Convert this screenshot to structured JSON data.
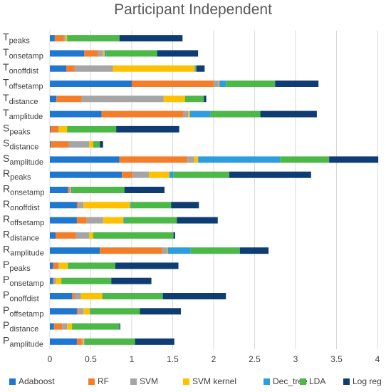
{
  "chart_data": {
    "type": "bar",
    "orientation": "horizontal",
    "stacked": true,
    "title": "Participant Independent",
    "xlim": [
      0,
      4
    ],
    "xticks": [
      "0",
      "0.5",
      "1",
      "1.5",
      "2",
      "2.5",
      "3",
      "3.5",
      "4"
    ],
    "grid": true,
    "legend_position": "bottom",
    "categories": [
      {
        "main": "T",
        "sub": "peaks"
      },
      {
        "main": "T",
        "sub": "onsetamp"
      },
      {
        "main": "T",
        "sub": "onoffdist"
      },
      {
        "main": "T",
        "sub": "offsetamp"
      },
      {
        "main": "T",
        "sub": "distance"
      },
      {
        "main": "T",
        "sub": "amplitude"
      },
      {
        "main": "S",
        "sub": "peaks"
      },
      {
        "main": "S",
        "sub": "distance"
      },
      {
        "main": "S",
        "sub": "amplitude"
      },
      {
        "main": "R",
        "sub": "peaks"
      },
      {
        "main": "R",
        "sub": "onsetamp"
      },
      {
        "main": "R",
        "sub": "onoffdist"
      },
      {
        "main": "R",
        "sub": "offsetamp"
      },
      {
        "main": "R",
        "sub": "distance"
      },
      {
        "main": "R",
        "sub": "amplitude"
      },
      {
        "main": "P",
        "sub": "peaks"
      },
      {
        "main": "P",
        "sub": "onsetamp"
      },
      {
        "main": "P",
        "sub": "onoffdist"
      },
      {
        "main": "P",
        "sub": "offsetamp"
      },
      {
        "main": "P",
        "sub": "distance"
      },
      {
        "main": "P",
        "sub": "amplitude"
      }
    ],
    "series": [
      {
        "name": "Adaboost",
        "color": "#1F77D0",
        "values": [
          0.06,
          0.42,
          0.2,
          1.0,
          0.08,
          0.63,
          0.01,
          0.01,
          0.85,
          0.88,
          0.22,
          0.33,
          0.33,
          0.07,
          0.61,
          0.04,
          0.04,
          0.27,
          0.33,
          0.05,
          0.33
        ]
      },
      {
        "name": "RF",
        "color": "#F47D2A",
        "values": [
          0.11,
          0.17,
          0.1,
          1.0,
          0.31,
          1.0,
          0.09,
          0.22,
          0.83,
          0.13,
          0.02,
          0.02,
          0.12,
          0.25,
          0.76,
          0.06,
          0.01,
          0.03,
          0.02,
          0.1,
          0.06
        ]
      },
      {
        "name": "SVM",
        "color": "#A5A5A5",
        "values": [
          0.02,
          0.06,
          0.47,
          0.06,
          1.0,
          0.06,
          0.01,
          0.25,
          0.08,
          0.2,
          0.01,
          0.06,
          0.2,
          0.16,
          0.06,
          0.01,
          0.02,
          0.08,
          0.06,
          0.06,
          0.01
        ]
      },
      {
        "name": "SVM kernel",
        "color": "#FFC000",
        "values": [
          0.02,
          0.02,
          1.0,
          0.01,
          0.26,
          0.02,
          0.1,
          0.05,
          0.05,
          0.25,
          0.01,
          0.57,
          0.25,
          0.05,
          0.01,
          0.11,
          0.07,
          0.26,
          0.08,
          0.06,
          0.02
        ]
      },
      {
        "name": "Dec_tree",
        "color": "#2E9DE0",
        "values": [
          0.0,
          0.02,
          0.01,
          0.08,
          0.0,
          0.25,
          0.0,
          0.0,
          1.0,
          0.05,
          0.01,
          0.01,
          0.02,
          0.0,
          0.28,
          0.0,
          0.0,
          0.0,
          0.01,
          0.0,
          0.01
        ]
      },
      {
        "name": "LDA",
        "color": "#4CB848",
        "values": [
          0.64,
          0.62,
          0.01,
          0.6,
          0.23,
          0.61,
          0.6,
          0.08,
          0.6,
          0.68,
          0.64,
          0.49,
          0.63,
          0.98,
          0.6,
          0.58,
          0.61,
          0.74,
          0.6,
          0.58,
          0.61
        ]
      },
      {
        "name": "Log reg",
        "color": "#0F3D73",
        "values": [
          0.77,
          0.5,
          0.1,
          0.53,
          0.03,
          0.69,
          0.77,
          0.04,
          0.6,
          1.0,
          0.49,
          0.34,
          0.5,
          0.02,
          0.35,
          0.77,
          0.49,
          0.77,
          0.5,
          0.01,
          0.48
        ]
      }
    ]
  }
}
